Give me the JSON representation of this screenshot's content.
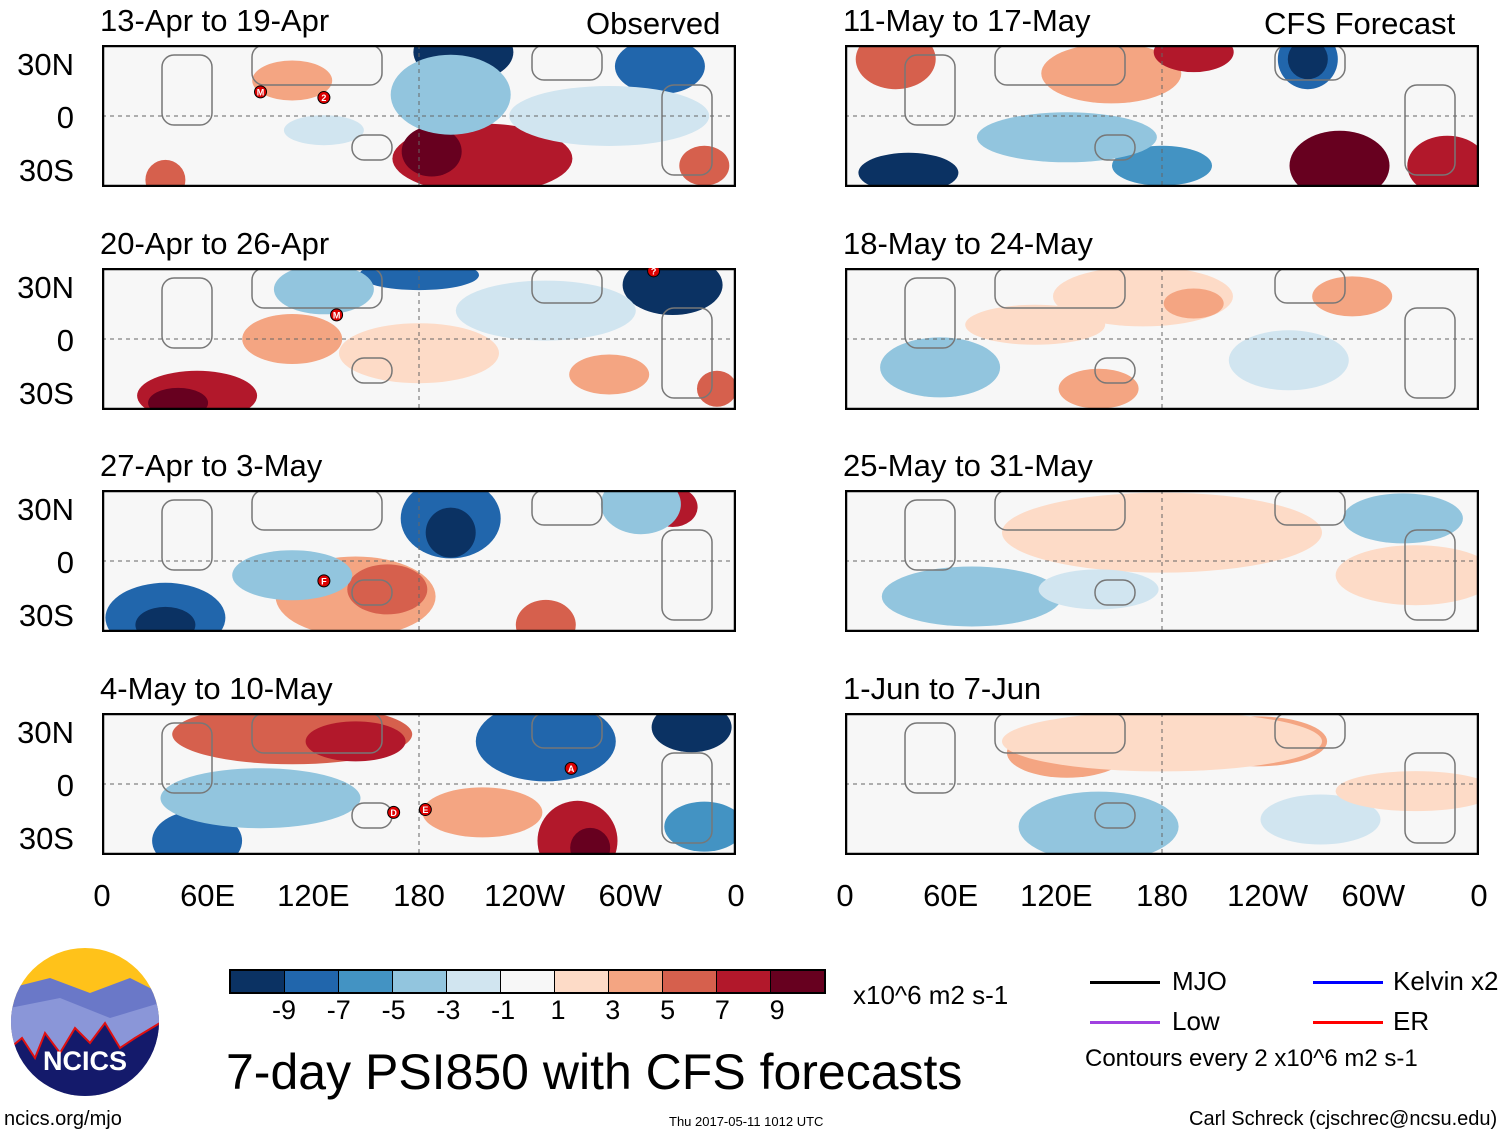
{
  "colorbar": {
    "colors": [
      "#0b3263",
      "#2166ac",
      "#4393c3",
      "#92c5de",
      "#d1e5f0",
      "#f7f7f7",
      "#fddbc7",
      "#f4a582",
      "#d6604d",
      "#b2182b",
      "#67001f"
    ],
    "labels": [
      "-9",
      "-7",
      "-5",
      "-3",
      "-1",
      "1",
      "3",
      "5",
      "7",
      "9"
    ],
    "units": "x10^6 m2 s-1"
  },
  "headers": {
    "observed": "Observed",
    "forecast": "CFS Forecast"
  },
  "panels_left": [
    {
      "title": "13-Apr to 19-Apr",
      "storms": [
        "M",
        "2"
      ]
    },
    {
      "title": "20-Apr to 26-Apr",
      "storms": [
        "M",
        "?"
      ]
    },
    {
      "title": "27-Apr to 3-May",
      "storms": [
        "F"
      ]
    },
    {
      "title": "4-May to 10-May",
      "storms": [
        "A",
        "D",
        "E"
      ]
    }
  ],
  "panels_right": [
    {
      "title": "11-May to 17-May"
    },
    {
      "title": "18-May to 24-May"
    },
    {
      "title": "25-May to 31-May"
    },
    {
      "title": "1-Jun to 7-Jun"
    }
  ],
  "lat_labels": [
    "30N",
    "0",
    "30S"
  ],
  "lon_labels": [
    "0",
    "60E",
    "120E",
    "180",
    "120W",
    "60W",
    "0"
  ],
  "title": "7-day PSI850 with CFS forecasts",
  "logo": "NCICS",
  "legend": {
    "mjo": "MJO",
    "kelvin": "Kelvin x2",
    "low": "Low",
    "er": "ER",
    "contours": "Contours every 2 x10^6 m2 s-1",
    "colors": {
      "mjo": "#000000",
      "kelvin": "#0000ff",
      "low": "#a040e0",
      "er": "#ff0000"
    }
  },
  "footer": {
    "url": "ncics.org/mjo",
    "timestamp": "Thu 2017-05-11 1012 UTC",
    "author": "Carl Schreck (cjschrec@ncsu.edu)"
  }
}
